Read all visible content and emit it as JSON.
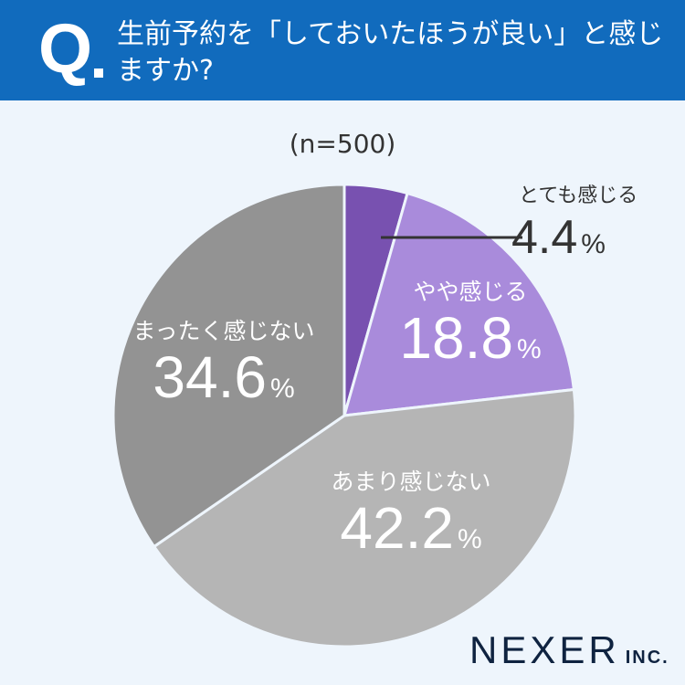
{
  "header": {
    "q_mark": "Q",
    "title": "生前予約を「しておいたほうが良い」と感じますか?"
  },
  "sample": "(n=500)",
  "colors": {
    "header": "#116bbd",
    "background": "#eef5fc",
    "slice1": "#7851b0",
    "slice2": "#a98bdb",
    "slice3": "#b5b5b5",
    "slice4": "#939393"
  },
  "chart_data": {
    "type": "pie",
    "title": "生前予約を「しておいたほうが良い」と感じますか?",
    "subtitle": "(n=500)",
    "categories": [
      "とても感じる",
      "やや感じる",
      "あまり感じない",
      "まったく感じない"
    ],
    "values": [
      4.4,
      18.8,
      42.2,
      34.6
    ],
    "unit": "%"
  },
  "labels": [
    {
      "cat": "とても感じる",
      "val": "4.4",
      "pct": "%"
    },
    {
      "cat": "やや感じる",
      "val": "18.8",
      "pct": "%"
    },
    {
      "cat": "あまり感じない",
      "val": "42.2",
      "pct": "%"
    },
    {
      "cat": "まったく感じない",
      "val": "34.6",
      "pct": "%"
    }
  ],
  "logo": {
    "name": "NEXER",
    "suffix": "INC."
  }
}
